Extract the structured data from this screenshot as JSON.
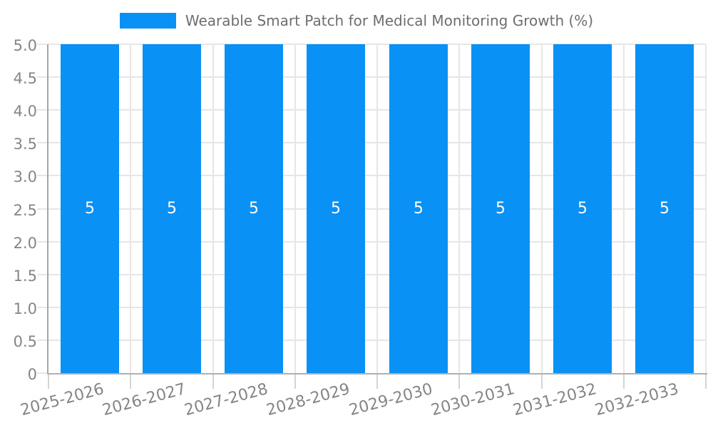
{
  "chart_data": {
    "type": "bar",
    "title": "Wearable Smart Patch for Medical Monitoring Growth (%)",
    "categories": [
      "2025-2026",
      "2026-2027",
      "2027-2028",
      "2028-2029",
      "2029-2030",
      "2030-2031",
      "2031-2032",
      "2032-2033"
    ],
    "series": [
      {
        "name": "Wearable Smart Patch for Medical Monitoring Growth (%)",
        "values": [
          5,
          5,
          5,
          5,
          5,
          5,
          5,
          5
        ]
      }
    ],
    "bar_value_labels": [
      "5",
      "5",
      "5",
      "5",
      "5",
      "5",
      "5",
      "5"
    ],
    "xlabel": "",
    "ylabel": "",
    "ylim": [
      0,
      5
    ],
    "ytick_labels": [
      "0",
      "0.5",
      "1.0",
      "1.5",
      "2.0",
      "2.5",
      "3.0",
      "3.5",
      "4.0",
      "4.5",
      "5.0"
    ],
    "grid": true,
    "legend_position": "top",
    "x_label_rotation_deg": -15,
    "colors": {
      "bar": "#0991f5",
      "value_label": "#ffffff",
      "grid": "#e6e6e6",
      "axis": "#b0b0b0",
      "axis_strong": "#a6a6a6",
      "stub": "#d4d4d4",
      "tick_label": "#858585",
      "legend_text": "#6e6e6e",
      "background": "#ffffff"
    }
  }
}
